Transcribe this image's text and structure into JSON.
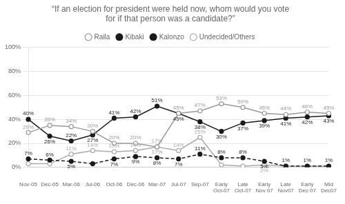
{
  "chart_data": {
    "type": "line",
    "title": "“If an election for president were held now, whom would you vote\nfor if that person was a candidate?”",
    "categories": [
      "Nov-05",
      "Dec-05",
      "Mar-06",
      "Jul-06",
      "Oct-06",
      "Dec-06",
      "Mar-07",
      "Jul-07",
      "Sep-07",
      "Early\nOct-07",
      "Late\nOct-07",
      "Early\nNov 07",
      "Late\nNov07",
      "Early\nDec 07",
      "Mid\nDec07"
    ],
    "series": [
      {
        "name": "Raila",
        "color": "#999999",
        "marker": "circle_open",
        "line_style": "solid",
        "values": [
          29,
          35,
          34,
          30,
          20,
          20,
          17,
          45,
          47,
          53,
          50,
          45,
          44,
          46,
          45
        ],
        "value_labels": [
          "29%",
          "35%",
          "34%",
          "30%",
          "20%",
          "20%",
          "17%",
          "45%",
          "47%",
          "53%",
          "50%",
          "45%",
          "44%",
          "46%",
          "45%"
        ]
      },
      {
        "name": "Kibaki",
        "color": "#1a1a1a",
        "marker": "circle",
        "line_style": "solid",
        "values": [
          40,
          26,
          22,
          27,
          41,
          42,
          51,
          45,
          38,
          30,
          37,
          39,
          41,
          42,
          43
        ],
        "value_labels": [
          "40%",
          "26%",
          "22%",
          "27%",
          "41%",
          "42%",
          "51%",
          "45%",
          "38%",
          "30%",
          "37%",
          "39%",
          "41%",
          "42%",
          "43%"
        ]
      },
      {
        "name": "Kalonzo",
        "color": "#1a1a1a",
        "marker": "circle",
        "line_style": "dashed",
        "values": [
          7,
          6,
          5,
          3,
          7,
          9,
          8,
          7,
          11,
          8,
          8,
          5,
          1,
          1,
          1
        ],
        "value_labels": [
          "7%",
          "6%",
          "5%",
          null,
          "7%",
          "9%",
          "8%",
          "7%",
          "11%",
          "8%",
          "8%",
          "5%",
          "1%",
          "1%",
          "1%"
        ]
      },
      {
        "name": "Undecided/Others",
        "color": "#aaaaaa",
        "marker": "circle_open",
        "line_style": "solid",
        "values": [
          3,
          3,
          11,
          14,
          13,
          14,
          17,
          14,
          25,
          2,
          1,
          2,
          1,
          1,
          1
        ],
        "value_labels": [
          null,
          null,
          "11%",
          "14%",
          "13%",
          "14%",
          "17%",
          "14%",
          "25%",
          null,
          null,
          "2%",
          null,
          null,
          null
        ]
      }
    ],
    "ylim": [
      0,
      100
    ],
    "yticks": [
      {
        "value": 0,
        "label": "0%"
      },
      {
        "value": 20,
        "label": "20%"
      },
      {
        "value": 40,
        "label": "40%"
      },
      {
        "value": 60,
        "label": "60%"
      },
      {
        "value": 80,
        "label": "80%"
      },
      {
        "value": 100,
        "label": "100%"
      }
    ],
    "grid": true,
    "legend": "top",
    "data_labels": true
  }
}
